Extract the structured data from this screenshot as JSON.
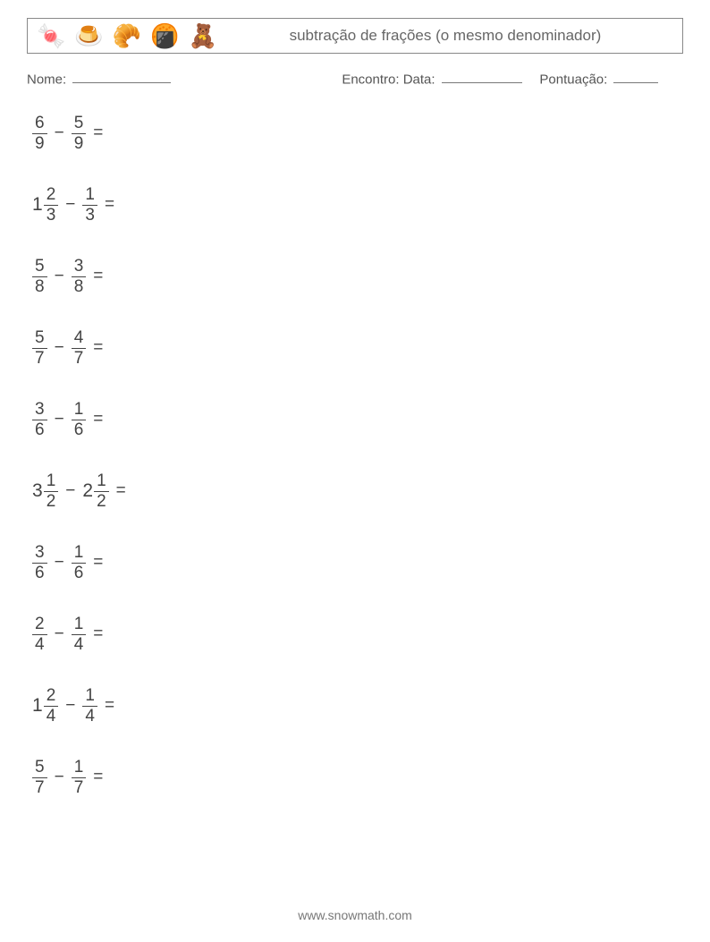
{
  "header": {
    "title": "subtração de frações (o mesmo denominador)",
    "icons": [
      "🍬",
      "🍮",
      "🥐",
      "🍘",
      "🧸"
    ]
  },
  "meta": {
    "name_label": "Nome:",
    "encounter_label": "Encontro:",
    "date_label": "Data:",
    "score_label": "Pontuação:",
    "blank_name_width": 110,
    "blank_date_width": 90,
    "blank_score_width": 50
  },
  "minus": "−",
  "equals": "=",
  "problems": [
    {
      "a": {
        "w": null,
        "n": "6",
        "d": "9"
      },
      "b": {
        "w": null,
        "n": "5",
        "d": "9"
      }
    },
    {
      "a": {
        "w": "1",
        "n": "2",
        "d": "3"
      },
      "b": {
        "w": null,
        "n": "1",
        "d": "3"
      }
    },
    {
      "a": {
        "w": null,
        "n": "5",
        "d": "8"
      },
      "b": {
        "w": null,
        "n": "3",
        "d": "8"
      }
    },
    {
      "a": {
        "w": null,
        "n": "5",
        "d": "7"
      },
      "b": {
        "w": null,
        "n": "4",
        "d": "7"
      }
    },
    {
      "a": {
        "w": null,
        "n": "3",
        "d": "6"
      },
      "b": {
        "w": null,
        "n": "1",
        "d": "6"
      }
    },
    {
      "a": {
        "w": "3",
        "n": "1",
        "d": "2"
      },
      "b": {
        "w": "2",
        "n": "1",
        "d": "2"
      }
    },
    {
      "a": {
        "w": null,
        "n": "3",
        "d": "6"
      },
      "b": {
        "w": null,
        "n": "1",
        "d": "6"
      }
    },
    {
      "a": {
        "w": null,
        "n": "2",
        "d": "4"
      },
      "b": {
        "w": null,
        "n": "1",
        "d": "4"
      }
    },
    {
      "a": {
        "w": "1",
        "n": "2",
        "d": "4"
      },
      "b": {
        "w": null,
        "n": "1",
        "d": "4"
      }
    },
    {
      "a": {
        "w": null,
        "n": "5",
        "d": "7"
      },
      "b": {
        "w": null,
        "n": "1",
        "d": "7"
      }
    }
  ],
  "footer": "www.snowmath.com"
}
